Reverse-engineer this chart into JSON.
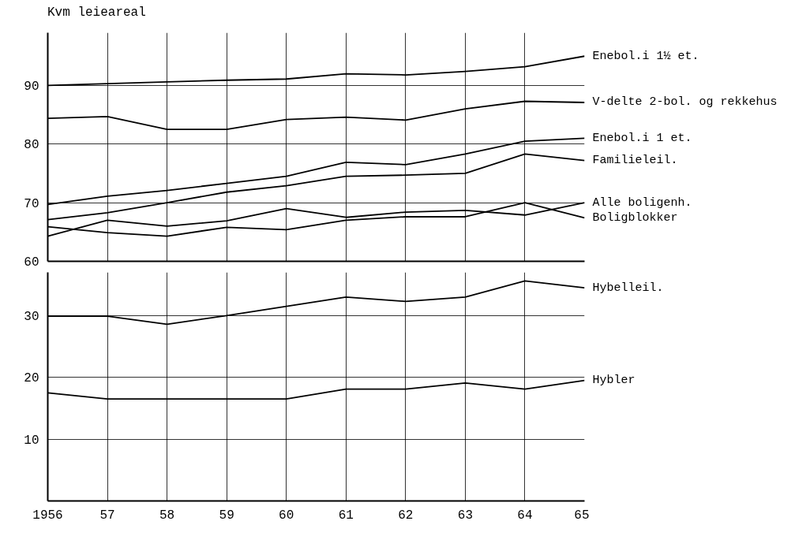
{
  "chart_data": [
    {
      "type": "line",
      "ylabel": "Kvm leieareal",
      "x": [
        1956,
        1957,
        1958,
        1959,
        1960,
        1961,
        1962,
        1963,
        1964,
        1965
      ],
      "series": [
        {
          "name": "Enebol.i 1½ et.",
          "color": "#000000",
          "values": [
            90,
            90.3,
            90.6,
            90.9,
            91.1,
            92,
            91.8,
            92.4,
            93.2,
            95
          ]
        },
        {
          "name": "V-delte 2-bol. og rekkehus",
          "color": "#000000",
          "values": [
            84.4,
            84.7,
            82.5,
            82.5,
            84.2,
            84.6,
            84.1,
            86.0,
            87.3,
            87.1
          ]
        },
        {
          "name": "Enebol.i 1 et.",
          "color": "#000000",
          "values": [
            69.7,
            71.1,
            72.1,
            73.3,
            74.5,
            76.9,
            76.5,
            78.3,
            80.5,
            81
          ]
        },
        {
          "name": "Familieleil.",
          "color": "#000000",
          "values": [
            67.1,
            68.3,
            70,
            71.8,
            72.9,
            74.5,
            74.7,
            75,
            78.3,
            77.2
          ]
        },
        {
          "name": "Alle boligenh.",
          "color": "#000000",
          "values": [
            64.3,
            67,
            66,
            66.9,
            69,
            67.5,
            68.4,
            68.7,
            67.9,
            70
          ]
        },
        {
          "name": "Boligblokker",
          "color": "#000000",
          "values": [
            65.9,
            64.9,
            64.3,
            65.8,
            65.4,
            67,
            67.6,
            67.6,
            70,
            67.4
          ]
        }
      ],
      "xlim": [
        1956,
        1965
      ],
      "ylim": [
        60,
        99
      ],
      "yticks": [
        60,
        70,
        80,
        90
      ],
      "xticks": [
        1956,
        1957,
        1958,
        1959,
        1960,
        1961,
        1962,
        1963,
        1964,
        1965
      ],
      "tick_labels": "y",
      "grid": true,
      "marker": "none",
      "line_style": "solid"
    },
    {
      "type": "line",
      "x": [
        1956,
        1957,
        1958,
        1959,
        1960,
        1961,
        1962,
        1963,
        1964,
        1965
      ],
      "series": [
        {
          "name": "Hybelleil.",
          "color": "#000000",
          "values": [
            29.9,
            29.9,
            28.6,
            30,
            31.5,
            33,
            32.3,
            33,
            35.6,
            34.5
          ]
        },
        {
          "name": "Hybler",
          "color": "#000000",
          "values": [
            17.5,
            16.5,
            16.5,
            16.5,
            16.5,
            18.1,
            18.1,
            19.1,
            18.1,
            19.5
          ]
        }
      ],
      "xlim": [
        1956,
        1965
      ],
      "ylim": [
        0,
        37
      ],
      "yticks": [
        10,
        20,
        30
      ],
      "xticks": [
        1956,
        {
          "value": 1957,
          "label": "57"
        },
        {
          "value": 1958,
          "label": "58"
        },
        {
          "value": 1959,
          "label": "59"
        },
        {
          "value": 1960,
          "label": "60"
        },
        {
          "value": 1961,
          "label": "61"
        },
        {
          "value": 1962,
          "label": "62"
        },
        {
          "value": 1963,
          "label": "63"
        },
        {
          "value": 1964,
          "label": "64"
        },
        {
          "value": 1965,
          "label": "65"
        }
      ],
      "grid": true,
      "marker": "none",
      "line_style": "solid"
    }
  ]
}
